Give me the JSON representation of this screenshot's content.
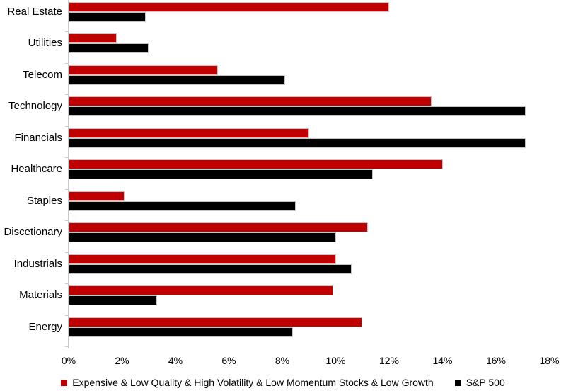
{
  "chart_data": {
    "type": "bar",
    "orientation": "horizontal",
    "title": "",
    "xlabel": "",
    "ylabel": "",
    "grid": false,
    "legend_position": "bottom",
    "xlim": [
      0,
      18
    ],
    "x_tick_values": [
      0,
      2,
      4,
      6,
      8,
      10,
      12,
      14,
      16,
      18
    ],
    "x_tick_labels": [
      "0%",
      "2%",
      "4%",
      "6%",
      "8%",
      "10%",
      "12%",
      "14%",
      "16%",
      "18%"
    ],
    "categories": [
      "Real Estate",
      "Utilities",
      "Telecom",
      "Technology",
      "Financials",
      "Healthcare",
      "Staples",
      "Discetionary",
      "Industrials",
      "Materials",
      "Energy"
    ],
    "series": [
      {
        "name": "Expensive & Low Quality & High Volatility & Low Momentum Stocks & Low Growth",
        "color": "#C00000",
        "values": [
          12.0,
          1.8,
          5.6,
          13.6,
          9.0,
          14.0,
          2.1,
          11.2,
          10.0,
          9.9,
          11.0
        ]
      },
      {
        "name": "S&P 500",
        "color": "#000000",
        "values": [
          2.9,
          3.0,
          8.1,
          17.1,
          17.1,
          11.4,
          8.5,
          10.0,
          10.6,
          3.3,
          8.4
        ]
      }
    ]
  },
  "colors": {
    "axis": "#c9c9c9",
    "bar_border": "#c6c6c6",
    "text": "#000000",
    "background": "#ffffff"
  }
}
